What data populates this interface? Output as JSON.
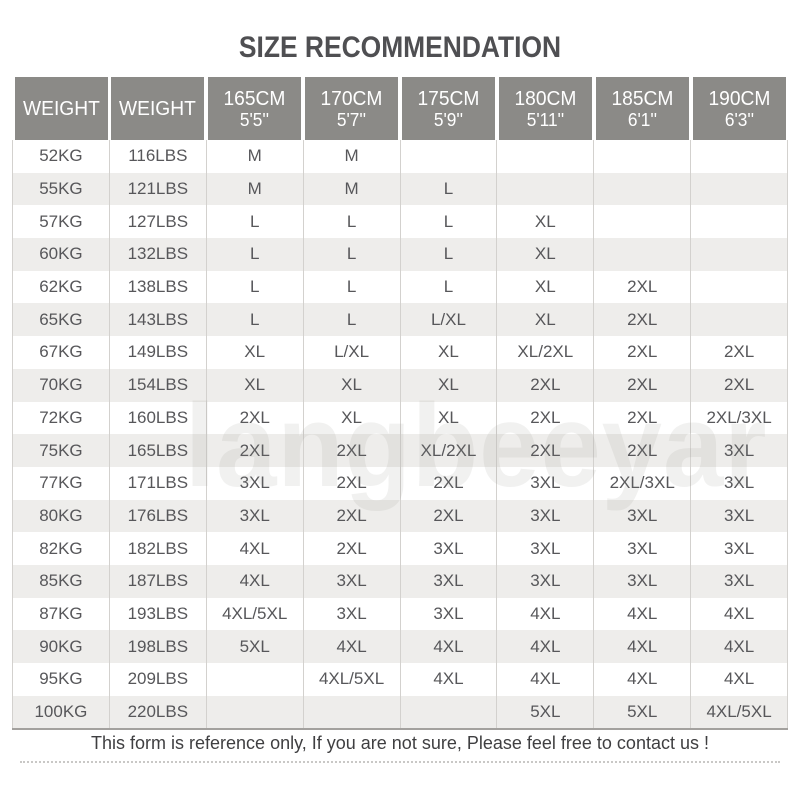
{
  "title": "SIZE RECOMMENDATION",
  "watermark": "langbeeyar",
  "footer": {
    "note": "This form is reference only, If you are not sure, Please feel free to contact us !"
  },
  "colors": {
    "header_bg": "#8b8a87",
    "header_text": "#ffffff",
    "title_text": "#4f4f52",
    "cell_text": "#57575a",
    "alt_row_bg": "#eeedeb",
    "grid_line": "#d3d1ce",
    "table_bottom_border": "#a3a19e"
  },
  "chart_data": {
    "type": "table",
    "title": "SIZE RECOMMENDATION",
    "columns": [
      {
        "label": "WEIGHT",
        "sub": ""
      },
      {
        "label": "WEIGHT",
        "sub": ""
      },
      {
        "label": "165CM",
        "sub": "5'5''"
      },
      {
        "label": "170CM",
        "sub": "5'7''"
      },
      {
        "label": "175CM",
        "sub": "5'9''"
      },
      {
        "label": "180CM",
        "sub": "5'11''"
      },
      {
        "label": "185CM",
        "sub": "6'1''"
      },
      {
        "label": "190CM",
        "sub": "6'3''"
      }
    ],
    "rows": [
      [
        "52KG",
        "116LBS",
        "M",
        "M",
        "",
        "",
        "",
        ""
      ],
      [
        "55KG",
        "121LBS",
        "M",
        "M",
        "L",
        "",
        "",
        ""
      ],
      [
        "57KG",
        "127LBS",
        "L",
        "L",
        "L",
        "XL",
        "",
        ""
      ],
      [
        "60KG",
        "132LBS",
        "L",
        "L",
        "L",
        "XL",
        "",
        ""
      ],
      [
        "62KG",
        "138LBS",
        "L",
        "L",
        "L",
        "XL",
        "2XL",
        ""
      ],
      [
        "65KG",
        "143LBS",
        "L",
        "L",
        "L/XL",
        "XL",
        "2XL",
        ""
      ],
      [
        "67KG",
        "149LBS",
        "XL",
        "L/XL",
        "XL",
        "XL/2XL",
        "2XL",
        "2XL"
      ],
      [
        "70KG",
        "154LBS",
        "XL",
        "XL",
        "XL",
        "2XL",
        "2XL",
        "2XL"
      ],
      [
        "72KG",
        "160LBS",
        "2XL",
        "XL",
        "XL",
        "2XL",
        "2XL",
        "2XL/3XL"
      ],
      [
        "75KG",
        "165LBS",
        "2XL",
        "2XL",
        "XL/2XL",
        "2XL",
        "2XL",
        "3XL"
      ],
      [
        "77KG",
        "171LBS",
        "3XL",
        "2XL",
        "2XL",
        "3XL",
        "2XL/3XL",
        "3XL"
      ],
      [
        "80KG",
        "176LBS",
        "3XL",
        "2XL",
        "2XL",
        "3XL",
        "3XL",
        "3XL"
      ],
      [
        "82KG",
        "182LBS",
        "4XL",
        "2XL",
        "3XL",
        "3XL",
        "3XL",
        "3XL"
      ],
      [
        "85KG",
        "187LBS",
        "4XL",
        "3XL",
        "3XL",
        "3XL",
        "3XL",
        "3XL"
      ],
      [
        "87KG",
        "193LBS",
        "4XL/5XL",
        "3XL",
        "3XL",
        "4XL",
        "4XL",
        "4XL"
      ],
      [
        "90KG",
        "198LBS",
        "5XL",
        "4XL",
        "4XL",
        "4XL",
        "4XL",
        "4XL"
      ],
      [
        "95KG",
        "209LBS",
        "",
        "4XL/5XL",
        "4XL",
        "4XL",
        "4XL",
        "4XL"
      ],
      [
        "100KG",
        "220LBS",
        "",
        "",
        "",
        "5XL",
        "5XL",
        "4XL/5XL"
      ]
    ]
  }
}
